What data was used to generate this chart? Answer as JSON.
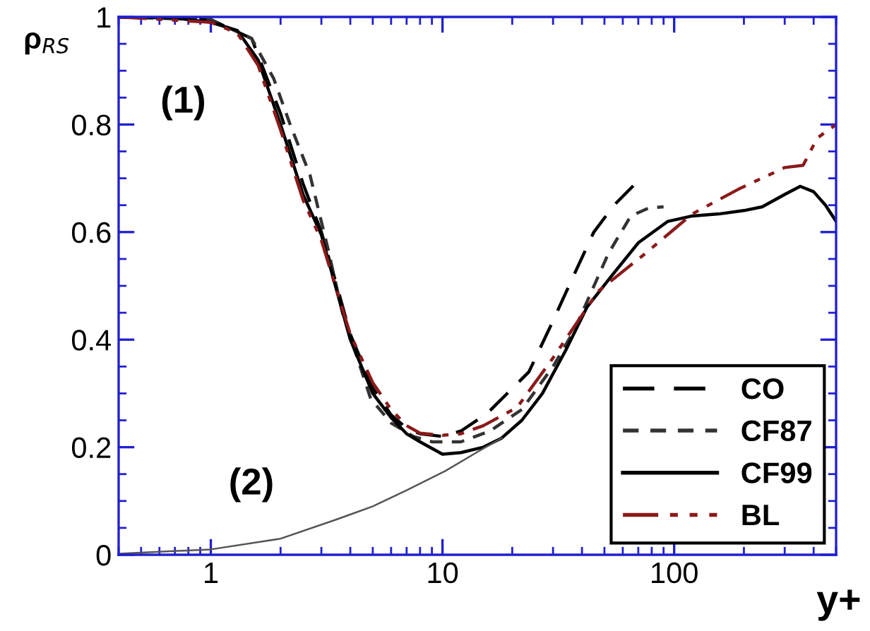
{
  "chart_data": {
    "type": "line",
    "xlabel": "y+",
    "ylabel": "ρ$_{RS}$",
    "log": "x",
    "xlim": [
      0.4,
      500
    ],
    "ylim": [
      0,
      1
    ],
    "xticks": [
      1,
      10,
      100
    ],
    "yticks": [
      0,
      0.2,
      0.4,
      0.6,
      0.8,
      1
    ],
    "grid": false,
    "legend": "bottom right",
    "annotations": [
      "(1)",
      "(2)"
    ],
    "series": [
      {
        "name": "CO",
        "color": "#000000",
        "line_style": "dashed",
        "x": [
          0.4,
          1,
          1.5,
          2,
          2.5,
          3,
          3.5,
          4,
          5,
          6,
          7,
          8,
          10,
          12,
          15.6,
          23.6,
          30,
          36,
          45,
          55,
          68
        ],
        "values": [
          1.0,
          0.995,
          0.96,
          0.82,
          0.69,
          0.6,
          0.5,
          0.41,
          0.31,
          0.26,
          0.235,
          0.225,
          0.22,
          0.23,
          0.263,
          0.34,
          0.435,
          0.51,
          0.6,
          0.65,
          0.69
        ]
      },
      {
        "name": "CF87",
        "color": "#333333",
        "line_style": "dotted",
        "x": [
          0.4,
          1,
          1.5,
          1.87,
          2.2,
          2.68,
          3.2,
          3.7,
          4.9,
          6,
          7.5,
          9,
          12,
          16,
          22,
          30,
          37,
          52,
          65,
          78,
          90
        ],
        "values": [
          1.0,
          0.995,
          0.96,
          0.885,
          0.8,
          0.706,
          0.57,
          0.45,
          0.29,
          0.245,
          0.22,
          0.21,
          0.21,
          0.23,
          0.27,
          0.35,
          0.417,
          0.56,
          0.63,
          0.645,
          0.647
        ]
      },
      {
        "name": "CF99",
        "color": "#000000",
        "line_style": "solid",
        "x": [
          0.4,
          0.7,
          1,
          1.3,
          1.6,
          2,
          2.5,
          3,
          3.5,
          4,
          5,
          6,
          7,
          8,
          10,
          12,
          15,
          18,
          22,
          27,
          34,
          42,
          54,
          70,
          94,
          120,
          158,
          200,
          240,
          300,
          350,
          400,
          450,
          500
        ],
        "values": [
          1.0,
          0.998,
          0.99,
          0.975,
          0.92,
          0.8,
          0.67,
          0.595,
          0.49,
          0.4,
          0.3,
          0.255,
          0.225,
          0.21,
          0.187,
          0.19,
          0.2,
          0.217,
          0.25,
          0.3,
          0.38,
          0.46,
          0.52,
          0.58,
          0.62,
          0.63,
          0.634,
          0.64,
          0.647,
          0.67,
          0.685,
          0.675,
          0.65,
          0.62
        ]
      },
      {
        "name": "BL",
        "color": "#8b1a1a",
        "line_style": "dashdot",
        "x": [
          0.4,
          1,
          1.3,
          1.6,
          2,
          2.5,
          3,
          3.5,
          4,
          5,
          6,
          7,
          8,
          10,
          12,
          15,
          21,
          30,
          47,
          75,
          120,
          190,
          300,
          360,
          415,
          500
        ],
        "values": [
          1.0,
          0.99,
          0.97,
          0.91,
          0.79,
          0.66,
          0.585,
          0.49,
          0.41,
          0.32,
          0.27,
          0.24,
          0.226,
          0.222,
          0.225,
          0.24,
          0.274,
          0.366,
          0.49,
          0.56,
          0.634,
          0.68,
          0.72,
          0.724,
          0.775,
          0.8
        ]
      },
      {
        "color": "#555555",
        "line_style": "solid",
        "x": [
          0.4,
          1,
          2,
          3.4,
          5,
          7,
          10.3,
          14,
          18
        ],
        "values": [
          0.002,
          0.01,
          0.03,
          0.064,
          0.09,
          0.12,
          0.156,
          0.19,
          0.217
        ]
      }
    ]
  }
}
